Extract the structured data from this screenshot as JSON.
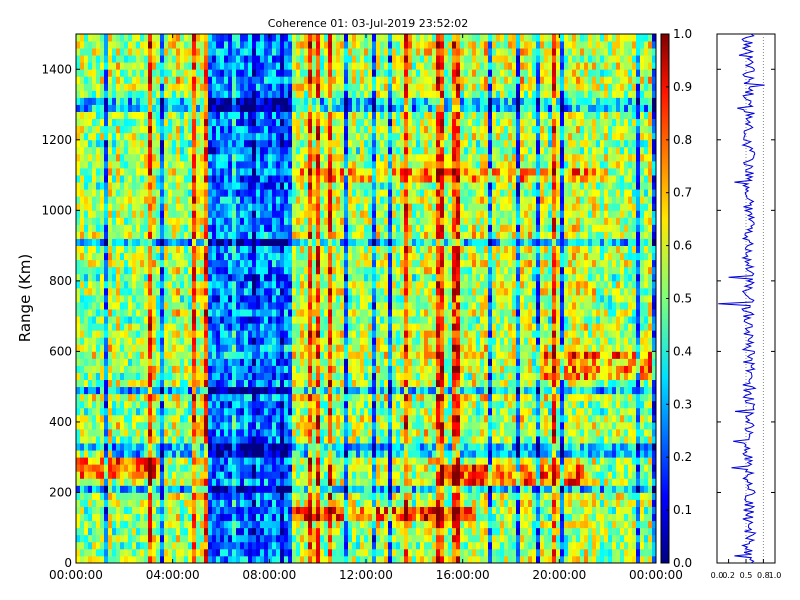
{
  "chart_data": [
    {
      "type": "heatmap",
      "title": "Coherence 01: 03-Jul-2019 23:52:02",
      "xlabel": "",
      "ylabel": "Range (Km)",
      "xlim": [
        "00:00:00",
        "24:00:00"
      ],
      "ylim": [
        0,
        1500
      ],
      "x_ticks": [
        "00:00:00",
        "04:00:00",
        "08:00:00",
        "12:00:00",
        "16:00:00",
        "20:00:00",
        "00:00:00"
      ],
      "y_ticks": [
        0,
        200,
        400,
        600,
        800,
        1000,
        1200,
        1400
      ],
      "colormap": "jet",
      "color_range": [
        0.0,
        1.0
      ],
      "colorbar_ticks": [
        "0.0",
        "0.1",
        "0.2",
        "0.3",
        "0.4",
        "0.5",
        "0.6",
        "0.7",
        "0.8",
        "0.9",
        "1.0"
      ],
      "background_level": 0.55,
      "features": [
        {
          "t_start": "05:30",
          "t_end": "09:00",
          "level": 0.25,
          "note": "low-coherence band"
        },
        {
          "t_start": "00:00",
          "t_end": "01:30",
          "r_start": 240,
          "r_end": 330,
          "level": 0.78
        },
        {
          "t_start": "01:30",
          "t_end": "03:30",
          "r_start": 230,
          "r_end": 300,
          "level": 0.8
        },
        {
          "t_start": "09:00",
          "t_end": "16:30",
          "r_start": 120,
          "r_end": 155,
          "level": 0.82
        },
        {
          "t_start": "15:00",
          "t_end": "21:00",
          "r_start": 220,
          "r_end": 290,
          "level": 0.78
        },
        {
          "t_start": "19:00",
          "t_end": "24:00",
          "r_start": 520,
          "r_end": 600,
          "level": 0.72
        },
        {
          "t_start": "09:00",
          "t_end": "22:00",
          "r_start": 1080,
          "r_end": 1130,
          "level": 0.7
        }
      ],
      "grid": false
    },
    {
      "type": "line",
      "title": "",
      "xlabel": "",
      "ylabel": "",
      "xlim": [
        0.0,
        1.0
      ],
      "ylim": [
        0,
        1500
      ],
      "x_ticks": [
        "0.0",
        "0.2",
        "0.5",
        "0.8",
        "1.0"
      ],
      "y_ticks": [
        0,
        200,
        400,
        600,
        800,
        1000,
        1200,
        1400
      ],
      "series": [
        {
          "color": "#0000dd",
          "mean": 0.55,
          "spread": 0.12,
          "excursions": [
            {
              "range": 20,
              "value": 0.3
            },
            {
              "range": 270,
              "value": 0.25
            },
            {
              "range": 345,
              "value": 0.28
            },
            {
              "range": 430,
              "value": 0.31
            },
            {
              "range": 735,
              "value": 0.02
            },
            {
              "range": 810,
              "value": 0.2
            },
            {
              "range": 1080,
              "value": 0.3
            },
            {
              "range": 1290,
              "value": 0.35
            },
            {
              "range": 1355,
              "value": 0.82
            },
            {
              "range": 1440,
              "value": 0.38
            }
          ]
        }
      ],
      "grid": false
    }
  ]
}
